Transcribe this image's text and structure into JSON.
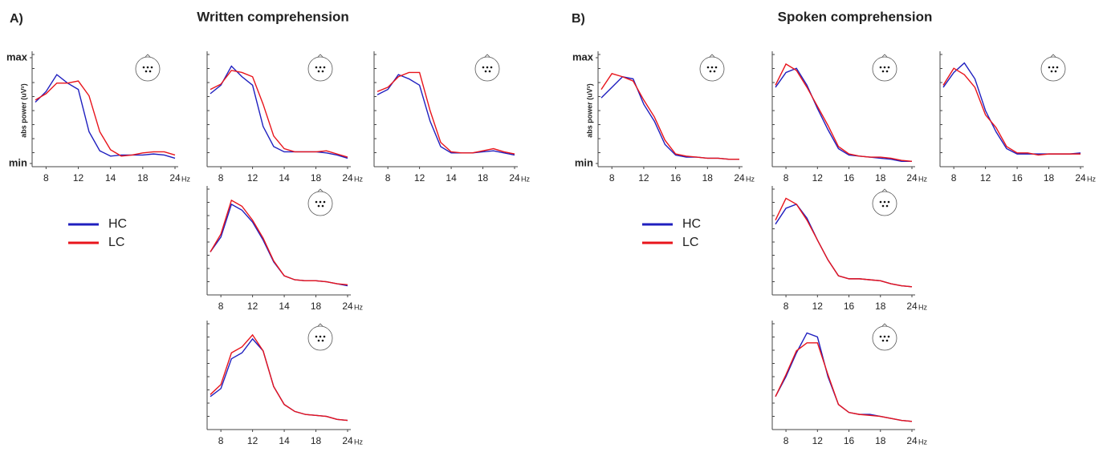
{
  "panels": [
    {
      "label": "A)",
      "title": "Written comprehension"
    },
    {
      "label": "B)",
      "title": "Spoken comprehension"
    }
  ],
  "chart_data": [
    {
      "type": "line",
      "ylabel": "abs power (uV²)",
      "xlabel": "Hz",
      "categories": [
        null,
        "8",
        null,
        null,
        "12",
        null,
        null,
        "14",
        null,
        null,
        "18",
        null,
        null,
        "24"
      ],
      "ylim": [
        0,
        1
      ],
      "yticks": [
        {
          "value": 1,
          "label": "max"
        },
        {
          "value": 0,
          "label": "min"
        }
      ],
      "series": [
        {
          "name": "HC",
          "color": "#1f1fbf",
          "values": [
            0.58,
            0.68,
            0.84,
            0.76,
            0.7,
            0.3,
            0.12,
            0.07,
            0.08,
            0.08,
            0.08,
            0.09,
            0.08,
            0.05
          ]
        },
        {
          "name": "LC",
          "color": "#e8141b",
          "values": [
            0.6,
            0.66,
            0.76,
            0.76,
            0.78,
            0.64,
            0.3,
            0.13,
            0.07,
            0.08,
            0.1,
            0.11,
            0.11,
            0.08
          ]
        }
      ]
    },
    {
      "type": "line",
      "xlabel": "Hz",
      "categories": [
        null,
        "8",
        null,
        null,
        "12",
        null,
        null,
        "14",
        null,
        null,
        "18",
        null,
        null,
        "24"
      ],
      "ylim": [
        0,
        1
      ],
      "series": [
        {
          "name": "HC",
          "color": "#1f1fbf",
          "values": [
            0.66,
            0.74,
            0.92,
            0.82,
            0.74,
            0.35,
            0.16,
            0.11,
            0.11,
            0.11,
            0.11,
            0.1,
            0.08,
            0.05
          ]
        },
        {
          "name": "LC",
          "color": "#e8141b",
          "values": [
            0.7,
            0.75,
            0.88,
            0.86,
            0.82,
            0.56,
            0.26,
            0.14,
            0.11,
            0.11,
            0.11,
            0.12,
            0.09,
            0.06
          ]
        }
      ]
    },
    {
      "type": "line",
      "xlabel": "Hz",
      "categories": [
        null,
        "8",
        null,
        null,
        "12",
        null,
        null,
        "14",
        null,
        null,
        "18",
        null,
        null,
        "24"
      ],
      "ylim": [
        0,
        1
      ],
      "series": [
        {
          "name": "HC",
          "color": "#1f1fbf",
          "values": [
            0.65,
            0.7,
            0.84,
            0.8,
            0.74,
            0.4,
            0.16,
            0.1,
            0.1,
            0.1,
            0.11,
            0.12,
            0.1,
            0.08
          ]
        },
        {
          "name": "LC",
          "color": "#e8141b",
          "values": [
            0.68,
            0.72,
            0.82,
            0.86,
            0.86,
            0.5,
            0.2,
            0.11,
            0.1,
            0.1,
            0.12,
            0.14,
            0.11,
            0.09
          ]
        }
      ]
    },
    {
      "type": "line",
      "xlabel": "Hz",
      "categories": [
        null,
        "8",
        null,
        null,
        "12",
        null,
        null,
        "14",
        null,
        null,
        "18",
        null,
        null,
        "24"
      ],
      "ylim": [
        0,
        1
      ],
      "series": [
        {
          "name": "HC",
          "color": "#1f1fbf",
          "values": [
            0.4,
            0.55,
            0.88,
            0.82,
            0.7,
            0.52,
            0.3,
            0.16,
            0.12,
            0.11,
            0.11,
            0.1,
            0.08,
            0.06
          ]
        },
        {
          "name": "LC",
          "color": "#e8141b",
          "values": [
            0.4,
            0.58,
            0.92,
            0.86,
            0.72,
            0.54,
            0.31,
            0.16,
            0.12,
            0.11,
            0.11,
            0.1,
            0.08,
            0.07
          ]
        }
      ]
    },
    {
      "type": "line",
      "xlabel": "Hz",
      "categories": [
        null,
        "8",
        null,
        null,
        "12",
        null,
        null,
        "14",
        null,
        null,
        "18",
        null,
        null,
        "24"
      ],
      "ylim": [
        0,
        1
      ],
      "series": [
        {
          "name": "HC",
          "color": "#1f1fbf",
          "values": [
            0.3,
            0.38,
            0.68,
            0.74,
            0.88,
            0.76,
            0.4,
            0.22,
            0.15,
            0.12,
            0.11,
            0.1,
            0.07,
            0.06
          ]
        },
        {
          "name": "LC",
          "color": "#e8141b",
          "values": [
            0.32,
            0.42,
            0.74,
            0.8,
            0.92,
            0.76,
            0.4,
            0.22,
            0.15,
            0.12,
            0.11,
            0.1,
            0.07,
            0.06
          ]
        }
      ]
    },
    {
      "type": "line",
      "ylabel": "abs power (uV²)",
      "xlabel": "Hz",
      "categories": [
        null,
        "8",
        null,
        null,
        "12",
        null,
        null,
        "16",
        null,
        null,
        "18",
        null,
        null,
        "24"
      ],
      "ylim": [
        0,
        1
      ],
      "yticks": [
        {
          "value": 1,
          "label": "max"
        },
        {
          "value": 0,
          "label": "min"
        }
      ],
      "series": [
        {
          "name": "HC",
          "color": "#1f1fbf",
          "values": [
            0.62,
            0.72,
            0.82,
            0.8,
            0.56,
            0.4,
            0.18,
            0.08,
            0.06,
            0.06,
            0.05,
            0.05,
            0.04,
            0.04
          ]
        },
        {
          "name": "LC",
          "color": "#e8141b",
          "values": [
            0.7,
            0.85,
            0.82,
            0.78,
            0.6,
            0.44,
            0.22,
            0.09,
            0.07,
            0.06,
            0.05,
            0.05,
            0.04,
            0.04
          ]
        }
      ]
    },
    {
      "type": "line",
      "xlabel": "Hz",
      "categories": [
        null,
        "8",
        null,
        null,
        "12",
        null,
        null,
        "16",
        null,
        null,
        "18",
        null,
        null,
        "24"
      ],
      "ylim": [
        0,
        1
      ],
      "series": [
        {
          "name": "HC",
          "color": "#1f1fbf",
          "values": [
            0.72,
            0.86,
            0.9,
            0.74,
            0.52,
            0.32,
            0.14,
            0.08,
            0.07,
            0.06,
            0.05,
            0.04,
            0.02,
            0.02
          ]
        },
        {
          "name": "LC",
          "color": "#e8141b",
          "values": [
            0.74,
            0.94,
            0.88,
            0.72,
            0.54,
            0.36,
            0.16,
            0.09,
            0.07,
            0.06,
            0.06,
            0.05,
            0.03,
            0.02
          ]
        }
      ]
    },
    {
      "type": "line",
      "xlabel": "Hz",
      "categories": [
        null,
        "8",
        null,
        null,
        "12",
        null,
        null,
        "16",
        null,
        null,
        "18",
        null,
        null,
        "24"
      ],
      "ylim": [
        0,
        1
      ],
      "series": [
        {
          "name": "HC",
          "color": "#1f1fbf",
          "values": [
            0.72,
            0.86,
            0.95,
            0.8,
            0.5,
            0.3,
            0.14,
            0.09,
            0.09,
            0.09,
            0.09,
            0.09,
            0.09,
            0.1
          ]
        },
        {
          "name": "LC",
          "color": "#e8141b",
          "values": [
            0.74,
            0.9,
            0.84,
            0.72,
            0.46,
            0.34,
            0.16,
            0.1,
            0.1,
            0.08,
            0.09,
            0.09,
            0.09,
            0.09
          ]
        }
      ]
    },
    {
      "type": "line",
      "xlabel": "Hz",
      "categories": [
        null,
        "8",
        null,
        null,
        "12",
        null,
        null,
        "16",
        null,
        null,
        "18",
        null,
        null,
        "24"
      ],
      "ylim": [
        0,
        1
      ],
      "series": [
        {
          "name": "HC",
          "color": "#1f1fbf",
          "values": [
            0.68,
            0.84,
            0.88,
            0.74,
            0.52,
            0.32,
            0.16,
            0.13,
            0.13,
            0.12,
            0.11,
            0.08,
            0.06,
            0.05
          ]
        },
        {
          "name": "LC",
          "color": "#e8141b",
          "values": [
            0.72,
            0.94,
            0.88,
            0.72,
            0.52,
            0.32,
            0.16,
            0.13,
            0.13,
            0.12,
            0.11,
            0.08,
            0.06,
            0.05
          ]
        }
      ]
    },
    {
      "type": "line",
      "xlabel": "Hz",
      "categories": [
        null,
        "8",
        null,
        null,
        "12",
        null,
        null,
        "16",
        null,
        null,
        "18",
        null,
        null,
        "24"
      ],
      "ylim": [
        0,
        1
      ],
      "series": [
        {
          "name": "HC",
          "color": "#1f1fbf",
          "values": [
            0.3,
            0.5,
            0.74,
            0.94,
            0.9,
            0.5,
            0.22,
            0.14,
            0.12,
            0.12,
            0.1,
            0.08,
            0.06,
            0.05
          ]
        },
        {
          "name": "LC",
          "color": "#e8141b",
          "values": [
            0.3,
            0.52,
            0.76,
            0.84,
            0.84,
            0.52,
            0.22,
            0.14,
            0.12,
            0.11,
            0.1,
            0.08,
            0.06,
            0.05
          ]
        }
      ]
    }
  ]
}
